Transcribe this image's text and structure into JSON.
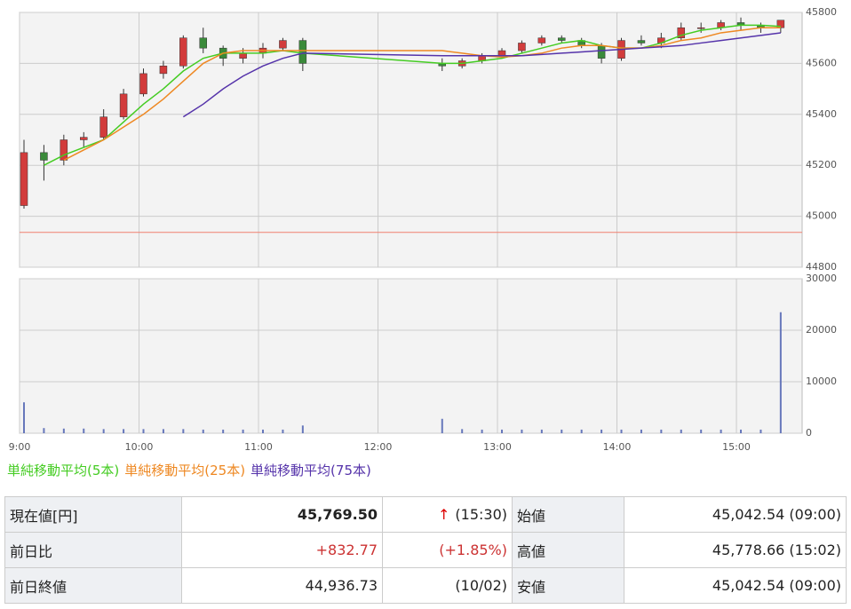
{
  "chart_data": [
    {
      "type": "candlestick",
      "x": [
        0,
        10,
        20,
        30,
        40,
        50,
        60,
        70,
        80,
        90,
        100,
        110,
        120,
        130,
        140,
        210,
        220,
        230,
        240,
        250,
        260,
        270,
        280,
        290,
        300,
        310,
        320,
        330,
        340,
        350,
        360,
        370,
        380
      ],
      "open": [
        45042,
        45250,
        45220,
        45300,
        45310,
        45390,
        45480,
        45560,
        45590,
        45700,
        45660,
        45620,
        45640,
        45660,
        45690,
        45600,
        45590,
        45610,
        45630,
        45650,
        45680,
        45700,
        45690,
        45670,
        45620,
        45690,
        45680,
        45700,
        45740,
        45740,
        45760,
        45750,
        45740
      ],
      "high": [
        45300,
        45280,
        45320,
        45330,
        45420,
        45500,
        45580,
        45610,
        45710,
        45740,
        45670,
        45660,
        45680,
        45700,
        45700,
        45620,
        45620,
        45640,
        45660,
        45690,
        45710,
        45710,
        45700,
        45680,
        45700,
        45710,
        45720,
        45760,
        45760,
        45770,
        45780,
        45760,
        45770
      ],
      "low": [
        45030,
        45140,
        45200,
        45270,
        45300,
        45380,
        45470,
        45540,
        45580,
        45640,
        45590,
        45600,
        45620,
        45650,
        45570,
        45570,
        45580,
        45600,
        45620,
        45640,
        45670,
        45680,
        45660,
        45600,
        45610,
        45670,
        45660,
        45690,
        45720,
        45730,
        45730,
        45720,
        45720
      ],
      "close": [
        45250,
        45220,
        45300,
        45310,
        45390,
        45480,
        45560,
        45590,
        45700,
        45660,
        45620,
        45640,
        45660,
        45690,
        45600,
        45590,
        45610,
        45630,
        45650,
        45680,
        45700,
        45690,
        45670,
        45620,
        45690,
        45680,
        45700,
        45740,
        45740,
        45760,
        45750,
        45740,
        45769.5
      ],
      "up_color": "#d23c3c",
      "down_color": "#3a8a3a",
      "series": [
        {
          "name": "単純移動平均(5本)",
          "color": "#44cc22",
          "values": [
            null,
            45200,
            45240,
            45270,
            45300,
            45370,
            45440,
            45500,
            45570,
            45620,
            45640,
            45640,
            45640,
            45650,
            45640,
            45600,
            45600,
            45610,
            45620,
            45640,
            45660,
            45680,
            45690,
            45670,
            45660,
            45660,
            45680,
            45710,
            45730,
            45740,
            45750,
            45750,
            45745
          ]
        },
        {
          "name": "単純移動平均(25本)",
          "color": "#ee8822",
          "values": [
            null,
            null,
            45220,
            45260,
            45300,
            45350,
            45400,
            45460,
            45530,
            45600,
            45640,
            45650,
            45650,
            45650,
            45650,
            45650,
            45640,
            45630,
            45625,
            45630,
            45640,
            45660,
            45670,
            45670,
            45660,
            45660,
            45670,
            45690,
            45700,
            45720,
            45730,
            45740,
            45740
          ]
        },
        {
          "name": "単純移動平均(75本)",
          "color": "#5533aa",
          "values": [
            null,
            null,
            null,
            null,
            null,
            null,
            null,
            null,
            45390,
            45440,
            45500,
            45550,
            45590,
            45620,
            45640,
            45630,
            45630,
            45630,
            45630,
            45630,
            45635,
            45640,
            45645,
            45650,
            45655,
            45660,
            45665,
            45670,
            45680,
            45690,
            45700,
            45710,
            45720
          ]
        }
      ],
      "reference_line": 44936.73,
      "reference_color": "#f08070",
      "xlim": [
        0,
        393
      ],
      "ylim": [
        44800,
        45800
      ],
      "yticks": [
        44800,
        45000,
        45200,
        45400,
        45600,
        45800
      ],
      "grid": true
    },
    {
      "type": "bar",
      "x": [
        0,
        10,
        20,
        30,
        40,
        50,
        60,
        70,
        80,
        90,
        100,
        110,
        120,
        130,
        140,
        210,
        220,
        230,
        240,
        250,
        260,
        270,
        280,
        290,
        300,
        310,
        320,
        330,
        340,
        350,
        360,
        370,
        380
      ],
      "values": [
        6000,
        1000,
        900,
        900,
        800,
        800,
        800,
        800,
        800,
        700,
        700,
        700,
        700,
        700,
        1500,
        2800,
        800,
        700,
        700,
        700,
        700,
        700,
        700,
        700,
        700,
        700,
        700,
        700,
        700,
        700,
        700,
        700,
        23500
      ],
      "color": "#6677bb",
      "xlim": [
        0,
        393
      ],
      "ylim": [
        0,
        30000
      ],
      "yticks": [
        0,
        10000,
        20000,
        30000
      ],
      "xticks": [
        {
          "value": 0,
          "label": "9:00"
        },
        {
          "value": 60,
          "label": "10:00"
        },
        {
          "value": 120,
          "label": "11:00"
        },
        {
          "value": 180,
          "label": "12:00"
        },
        {
          "value": 240,
          "label": "13:00"
        },
        {
          "value": 300,
          "label": "14:00"
        },
        {
          "value": 360,
          "label": "15:00"
        }
      ],
      "grid": true
    }
  ],
  "table": {
    "rows": [
      {
        "label": "現在値[円]",
        "value": "45,769.50",
        "arrow": "↑",
        "note": "(15:30)",
        "label2": "始値",
        "value2": "45,042.54 (09:00)"
      },
      {
        "label": "前日比",
        "value": "+832.77",
        "note": "(+1.85%)",
        "label2": "高値",
        "value2": "45,778.66 (15:02)"
      },
      {
        "label": "前日終値",
        "value": "44,936.73",
        "note": "(10/02)",
        "label2": "安値",
        "value2": "45,042.54 (09:00)"
      }
    ]
  }
}
